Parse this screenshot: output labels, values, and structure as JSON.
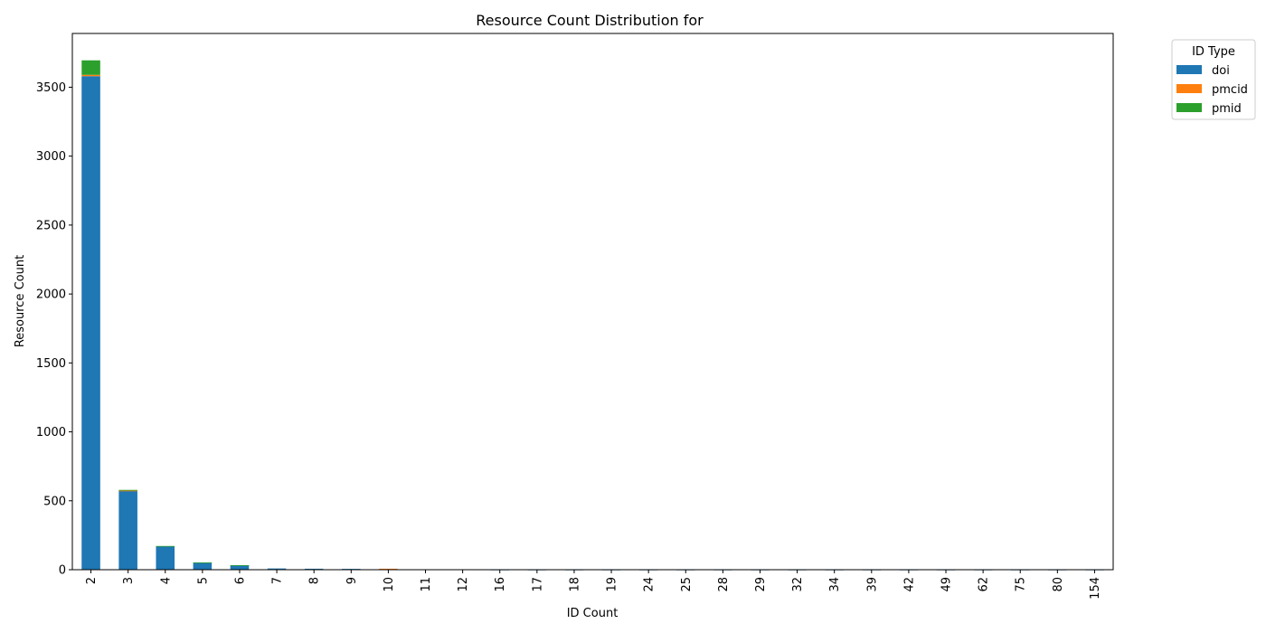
{
  "chart_data": {
    "type": "bar",
    "stacked": true,
    "title": "Resource Count Distribution for",
    "xlabel": "ID Count",
    "ylabel": "Resource Count",
    "ylim": [
      0,
      3890
    ],
    "yticks": [
      0,
      500,
      1000,
      1500,
      2000,
      2500,
      3000,
      3500
    ],
    "categories": [
      "2",
      "3",
      "4",
      "5",
      "6",
      "7",
      "8",
      "9",
      "10",
      "11",
      "12",
      "16",
      "17",
      "18",
      "19",
      "24",
      "25",
      "28",
      "29",
      "32",
      "34",
      "39",
      "42",
      "49",
      "62",
      "75",
      "80",
      "154"
    ],
    "series": [
      {
        "name": "doi",
        "color": "#1f77b4",
        "values": [
          3580,
          572,
          170,
          52,
          32,
          9,
          7,
          6,
          3,
          2,
          2,
          1,
          1,
          1,
          1,
          1,
          1,
          1,
          1,
          1,
          1,
          1,
          1,
          1,
          1,
          1,
          1,
          1
        ]
      },
      {
        "name": "pmcid",
        "color": "#ff7f0e",
        "values": [
          10,
          2,
          0,
          0,
          0,
          0,
          0,
          0,
          4,
          0,
          0,
          0,
          0,
          0,
          0,
          0,
          0,
          0,
          0,
          0,
          0,
          0,
          0,
          0,
          0,
          0,
          0,
          0
        ]
      },
      {
        "name": "pmid",
        "color": "#2ca02c",
        "values": [
          105,
          5,
          2,
          1,
          1,
          0,
          0,
          0,
          0,
          0,
          0,
          0,
          0,
          0,
          0,
          0,
          0,
          0,
          0,
          0,
          0,
          0,
          0,
          0,
          0,
          0,
          0,
          0
        ]
      }
    ],
    "legend": {
      "title": "ID Type",
      "position": "outside-top-right"
    },
    "grid": false
  }
}
